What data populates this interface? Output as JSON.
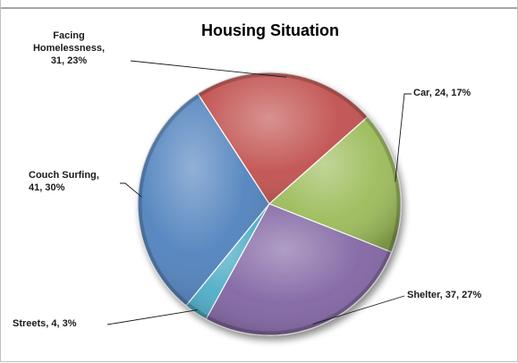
{
  "chart_data": {
    "type": "pie",
    "title": "Housing Situation",
    "slices": [
      {
        "label": "Facing Homelessness",
        "value": 31,
        "percent": "23%",
        "color": "#c0504d",
        "label_lines": [
          "Facing",
          "Homelessness,",
          "31, 23%"
        ]
      },
      {
        "label": "Car",
        "value": 24,
        "percent": "17%",
        "color": "#9bbb59",
        "label_lines": [
          "Car, 24, 17%"
        ]
      },
      {
        "label": "Shelter",
        "value": 37,
        "percent": "27%",
        "color": "#8064a2",
        "label_lines": [
          "Shelter, 37, 27%"
        ]
      },
      {
        "label": "Streets",
        "value": 4,
        "percent": "3%",
        "color": "#4bacc6",
        "label_lines": [
          "Streets, 4, 3%"
        ]
      },
      {
        "label": "Couch Surfing",
        "value": 41,
        "percent": "30%",
        "color": "#4f81bd",
        "label_lines": [
          "Couch Surfing,",
          "41, 30%"
        ]
      }
    ],
    "legend": "none",
    "style": "3d-beveled"
  }
}
